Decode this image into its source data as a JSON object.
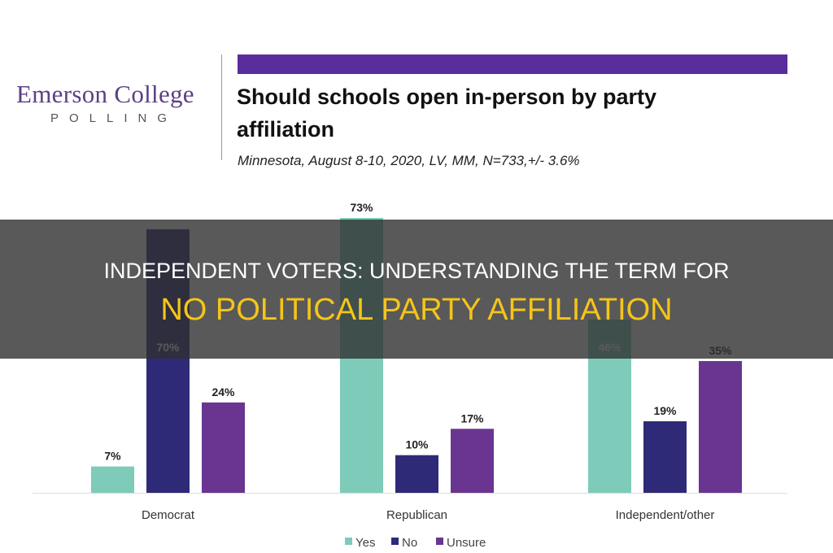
{
  "logo": {
    "line1": "Emerson College",
    "line2": "POLLING"
  },
  "colors": {
    "yes": "#7dcbb8",
    "no": "#2e2a78",
    "unsure": "#6a3591",
    "accent_bar": "#5a2d9c",
    "headline_highlight": "#f5c518"
  },
  "headline": {
    "line1": "INDEPENDENT VOTERS: UNDERSTANDING THE TERM FOR",
    "line2": "NO POLITICAL PARTY AFFILIATION"
  },
  "chart_data": {
    "type": "bar",
    "title": "Should schools open in-person by party affiliation",
    "subtitle": "Minnesota, August 8-10, 2020, LV, MM,  N=733,+/-  3.6%",
    "categories": [
      "Democrat",
      "Republican",
      "Independent/other"
    ],
    "series": [
      {
        "name": "Yes",
        "values": [
          7,
          73,
          46
        ],
        "labels": [
          "7%",
          "73%",
          "46%"
        ]
      },
      {
        "name": "No",
        "values": [
          70,
          10,
          19
        ],
        "labels": [
          "70%",
          "10%",
          "19%"
        ]
      },
      {
        "name": "Unsure",
        "values": [
          24,
          17,
          35
        ],
        "labels": [
          "24%",
          "17%",
          "35%"
        ]
      }
    ],
    "xlabel": "",
    "ylabel": "",
    "ylim": [
      0,
      80
    ],
    "grid": false,
    "legend": "bottom"
  }
}
